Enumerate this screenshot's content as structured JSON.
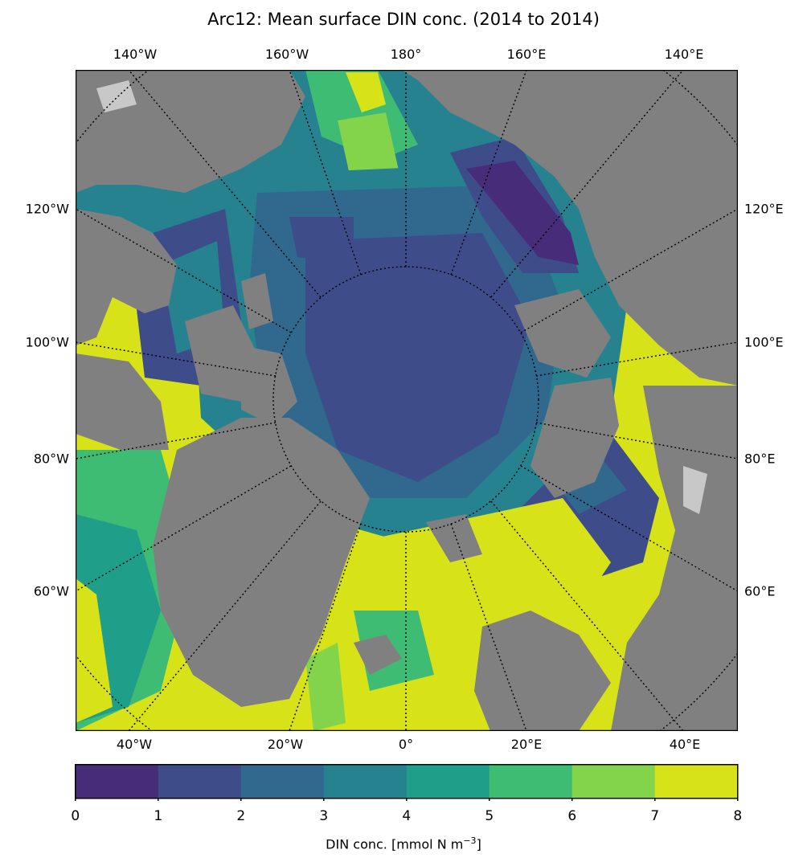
{
  "title": "Arc12: Mean surface DIN conc. (2014 to 2014)",
  "labels": {
    "top": [
      "140°W",
      "160°W",
      "180°",
      "160°E",
      "140°E"
    ],
    "bottom": [
      "40°W",
      "20°W",
      "0°",
      "20°E",
      "40°E"
    ],
    "left": [
      "120°W",
      "100°W",
      "80°W",
      "60°W"
    ],
    "right": [
      "120°E",
      "100°E",
      "80°E",
      "60°E"
    ]
  },
  "colorbar": {
    "label": "DIN conc. [mmol N m",
    "label_sup": "−3",
    "label_end": "]",
    "ticks": [
      "0",
      "1",
      "2",
      "3",
      "4",
      "5",
      "6",
      "7",
      "8"
    ],
    "colors": [
      "#472c7a",
      "#3e4c8a",
      "#31688e",
      "#26828e",
      "#1f9e89",
      "#3fbc73",
      "#84d44b",
      "#d8e219"
    ]
  },
  "map_colors": {
    "land": "#808080",
    "ice": "#c8c8c8",
    "grid": "#000000"
  }
}
